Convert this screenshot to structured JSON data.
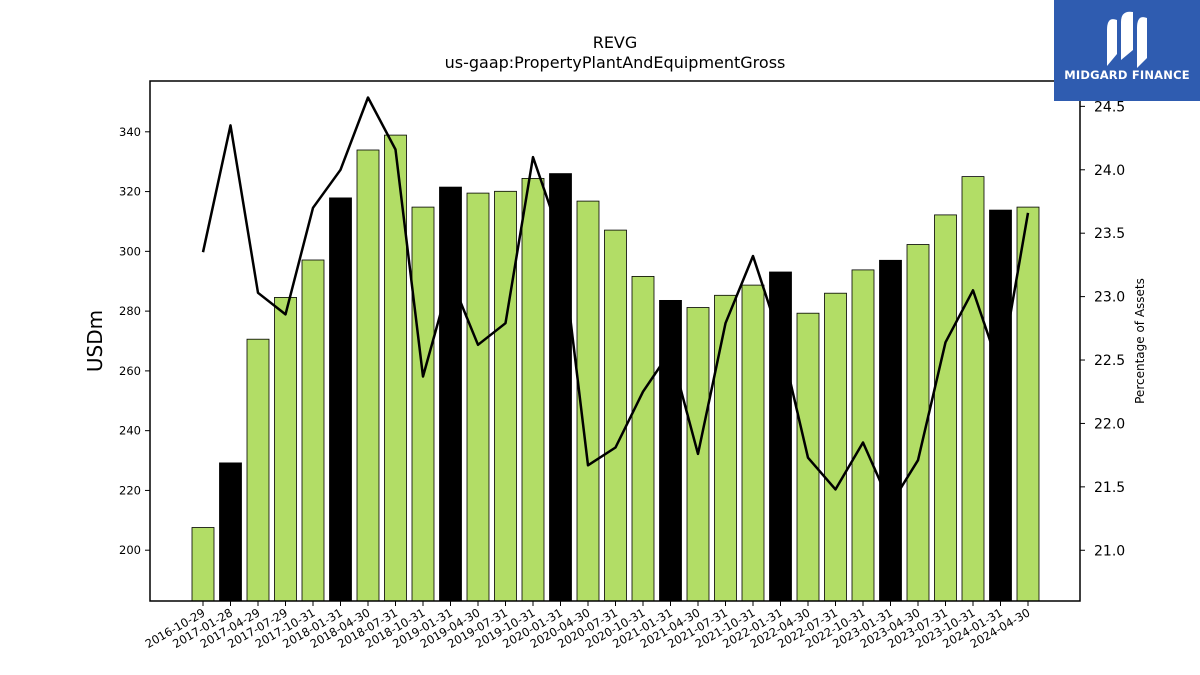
{
  "brand": {
    "name": "MIDGARD FINANCE",
    "bg_color": "#2f5cb0"
  },
  "chart_data": {
    "type": "bar",
    "title": "REVG",
    "subtitle": "us-gaap:PropertyPlantAndEquipmentGross",
    "ylabel": "USDm",
    "y2label": "Percentage of Assets",
    "ylim": [
      183,
      357
    ],
    "y2lim": [
      20.6,
      24.7
    ],
    "yticks": [
      200,
      220,
      240,
      260,
      280,
      300,
      320,
      340
    ],
    "y2ticks": [
      "21.0",
      "21.5",
      "22.0",
      "22.5",
      "23.0",
      "23.5",
      "24.0",
      "24.5"
    ],
    "categories": [
      "2016-10-29",
      "2017-01-28",
      "2017-04-29",
      "2017-07-29",
      "2017-10-31",
      "2018-01-31",
      "2018-04-30",
      "2018-07-31",
      "2018-10-31",
      "2019-01-31",
      "2019-04-30",
      "2019-07-31",
      "2019-10-31",
      "2020-01-31",
      "2020-04-30",
      "2020-07-31",
      "2020-10-31",
      "2021-01-31",
      "2021-04-30",
      "2021-07-31",
      "2021-10-31",
      "2022-01-31",
      "2022-04-30",
      "2022-07-31",
      "2022-10-31",
      "2023-01-31",
      "2023-04-30",
      "2023-07-31",
      "2023-10-31",
      "2024-01-31",
      "2024-04-30"
    ],
    "series": [
      {
        "type": "bar",
        "values": [
          207.6,
          229.2,
          270.6,
          284.6,
          297.1,
          317.9,
          333.9,
          338.9,
          314.8,
          321.5,
          319.5,
          320.1,
          324.4,
          326.0,
          316.8,
          307.1,
          291.6,
          283.6,
          281.2,
          285.3,
          288.7,
          293.1,
          279.3,
          286.0,
          293.8,
          297.0,
          302.3,
          312.2,
          325.0,
          313.8,
          314.8
        ],
        "highlight": [
          false,
          true,
          false,
          false,
          false,
          true,
          false,
          false,
          false,
          true,
          false,
          false,
          false,
          true,
          false,
          false,
          false,
          true,
          false,
          false,
          false,
          true,
          false,
          false,
          false,
          true,
          false,
          false,
          false,
          true,
          false
        ],
        "color": "#b2dd66",
        "highlight_color": "#000000"
      },
      {
        "type": "line",
        "axis": "right",
        "values": [
          23.35,
          24.35,
          23.03,
          22.86,
          23.7,
          24.0,
          24.57,
          24.16,
          22.37,
          23.15,
          22.62,
          22.79,
          24.1,
          23.47,
          21.67,
          21.81,
          22.25,
          22.57,
          21.76,
          22.79,
          23.32,
          22.66,
          21.73,
          21.48,
          21.85,
          21.36,
          21.71,
          22.64,
          23.05,
          22.41,
          23.66
        ],
        "color": "#000000"
      }
    ],
    "grid": false,
    "legend": "none"
  }
}
